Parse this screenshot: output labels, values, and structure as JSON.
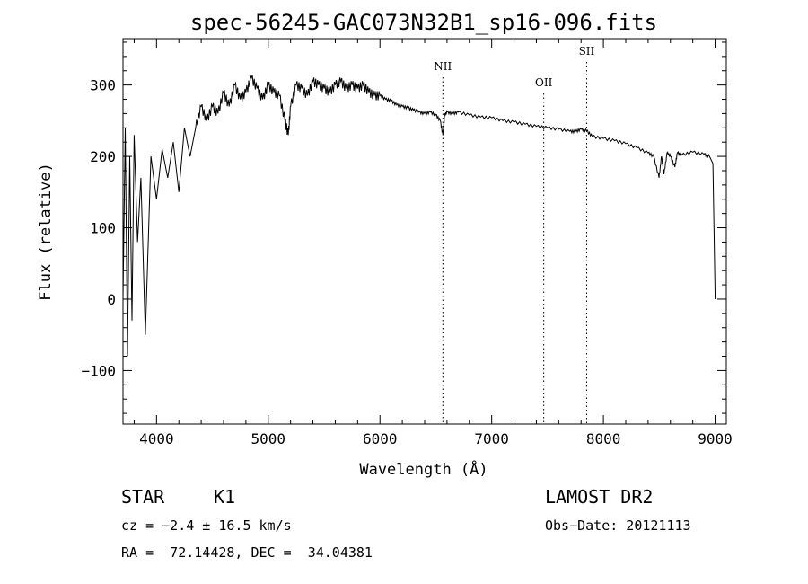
{
  "chart_data": {
    "type": "line",
    "title": "spec-56245-GAC073N32B1_sp16-096.fits",
    "xlabel": "Wavelength (Å)",
    "ylabel": "Flux (relative)",
    "xlim": [
      3700,
      9100
    ],
    "ylim": [
      -175,
      365
    ],
    "x_ticks": [
      4000,
      5000,
      6000,
      7000,
      8000,
      9000
    ],
    "y_ticks": [
      -100,
      0,
      100,
      200,
      300
    ],
    "grid": false,
    "series": [
      {
        "x": [
          3700,
          3720,
          3740,
          3760,
          3780,
          3800,
          3830,
          3860,
          3900,
          3950,
          4000,
          4050,
          4100,
          4150,
          4200,
          4250,
          4300,
          4350,
          4400,
          4450,
          4500,
          4550,
          4600,
          4650,
          4700,
          4750,
          4800,
          4850,
          4900,
          4950,
          5000,
          5050,
          5100,
          5150,
          5180,
          5200,
          5250,
          5300,
          5350,
          5400,
          5450,
          5500,
          5550,
          5600,
          5650,
          5700,
          5750,
          5800,
          5850,
          5900,
          5950,
          6000,
          6050,
          6100,
          6150,
          6200,
          6250,
          6300,
          6350,
          6400,
          6450,
          6500,
          6540,
          6563,
          6580,
          6600,
          6650,
          6700,
          6800,
          6900,
          7000,
          7100,
          7200,
          7300,
          7400,
          7500,
          7600,
          7700,
          7750,
          7800,
          7850,
          7900,
          8000,
          8100,
          8200,
          8300,
          8400,
          8450,
          8498,
          8520,
          8542,
          8570,
          8600,
          8640,
          8662,
          8700,
          8800,
          8900,
          8950,
          8980,
          8990,
          9000
        ],
        "y": [
          0,
          240,
          -80,
          200,
          -30,
          230,
          80,
          170,
          -50,
          200,
          140,
          210,
          170,
          220,
          150,
          240,
          200,
          240,
          270,
          250,
          270,
          260,
          290,
          270,
          300,
          280,
          290,
          310,
          295,
          280,
          300,
          290,
          285,
          250,
          230,
          270,
          300,
          295,
          285,
          305,
          300,
          295,
          290,
          300,
          305,
          295,
          300,
          295,
          300,
          290,
          285,
          285,
          280,
          278,
          272,
          270,
          268,
          265,
          262,
          260,
          262,
          258,
          250,
          230,
          258,
          262,
          260,
          262,
          258,
          255,
          254,
          250,
          248,
          245,
          242,
          240,
          238,
          235,
          235,
          238,
          236,
          228,
          225,
          222,
          218,
          212,
          205,
          200,
          170,
          200,
          175,
          205,
          200,
          185,
          205,
          202,
          206,
          203,
          200,
          190,
          100,
          0
        ]
      }
    ],
    "lines": [
      {
        "label": "NII",
        "x": 6563
      },
      {
        "label": "OII",
        "x": 7466
      },
      {
        "label": "SII",
        "x": 7850
      }
    ]
  },
  "info": {
    "class": "STAR",
    "subclass": "K1",
    "survey": "LAMOST DR2",
    "cz": "cz = −2.4 ± 16.5 km/s",
    "obs_date": "Obs−Date: 20121113",
    "coords": "RA =  72.14428, DEC =  34.04381"
  }
}
